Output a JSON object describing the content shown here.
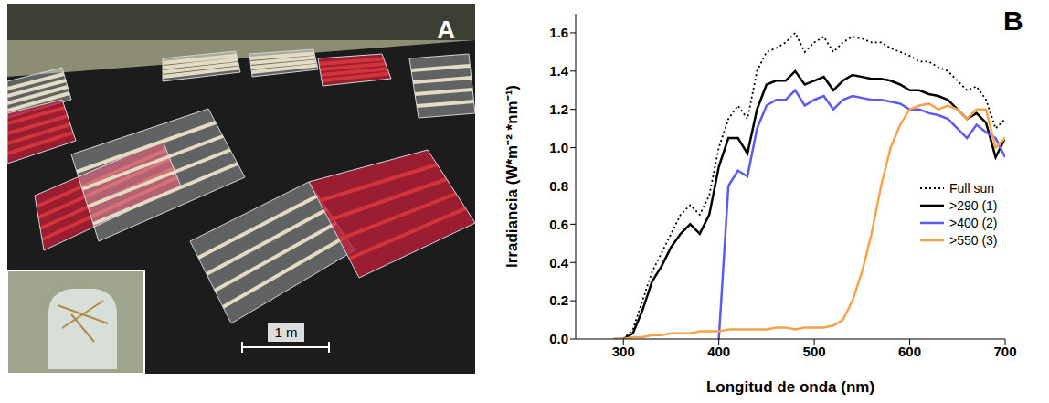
{
  "panel_a": {
    "label": "A",
    "scale_bar": "1 m"
  },
  "chart_data": {
    "type": "line",
    "panel_label": "B",
    "x_label": "Longitud de onda (nm)",
    "y_label": "Irradiancia (W*m⁻² *nm⁻¹)",
    "x": [
      290,
      300,
      310,
      320,
      330,
      340,
      350,
      360,
      370,
      380,
      390,
      400,
      410,
      420,
      430,
      440,
      450,
      460,
      470,
      480,
      490,
      500,
      510,
      520,
      530,
      540,
      550,
      560,
      570,
      580,
      590,
      600,
      610,
      620,
      630,
      640,
      650,
      660,
      670,
      680,
      690,
      700
    ],
    "series": [
      {
        "name": "Full sun",
        "color": "#000000",
        "line_style": "dotted",
        "values": [
          0,
          0,
          0.05,
          0.2,
          0.35,
          0.45,
          0.55,
          0.65,
          0.7,
          0.65,
          0.75,
          1.0,
          1.15,
          1.22,
          1.15,
          1.4,
          1.5,
          1.52,
          1.55,
          1.6,
          1.5,
          1.55,
          1.58,
          1.5,
          1.55,
          1.58,
          1.57,
          1.55,
          1.55,
          1.52,
          1.5,
          1.48,
          1.45,
          1.45,
          1.42,
          1.4,
          1.35,
          1.3,
          1.32,
          1.25,
          1.1,
          1.15
        ]
      },
      {
        "name": ">290 (1)",
        "color": "#000000",
        "line_style": "solid",
        "values": [
          0,
          0,
          0.03,
          0.15,
          0.3,
          0.38,
          0.48,
          0.55,
          0.6,
          0.55,
          0.65,
          0.9,
          1.05,
          1.05,
          0.97,
          1.2,
          1.33,
          1.35,
          1.35,
          1.4,
          1.33,
          1.35,
          1.37,
          1.3,
          1.35,
          1.38,
          1.37,
          1.36,
          1.36,
          1.35,
          1.33,
          1.3,
          1.3,
          1.28,
          1.27,
          1.25,
          1.2,
          1.15,
          1.18,
          1.13,
          0.95,
          1.05
        ]
      },
      {
        "name": ">400 (2)",
        "color": "#5b5bf0",
        "line_style": "solid",
        "values": [
          null,
          null,
          null,
          null,
          null,
          null,
          null,
          null,
          null,
          null,
          null,
          0.0,
          0.8,
          0.88,
          0.85,
          1.1,
          1.22,
          1.25,
          1.25,
          1.3,
          1.22,
          1.25,
          1.27,
          1.2,
          1.25,
          1.27,
          1.26,
          1.25,
          1.25,
          1.24,
          1.23,
          1.2,
          1.2,
          1.18,
          1.17,
          1.15,
          1.1,
          1.05,
          1.12,
          1.08,
          1.05,
          0.95
        ]
      },
      {
        "name": ">550 (3)",
        "color": "#f5a24b",
        "line_style": "solid",
        "values": [
          0,
          0,
          0.01,
          0.01,
          0.02,
          0.02,
          0.03,
          0.03,
          0.03,
          0.04,
          0.04,
          0.04,
          0.05,
          0.05,
          0.05,
          0.05,
          0.05,
          0.06,
          0.06,
          0.05,
          0.06,
          0.06,
          0.06,
          0.07,
          0.1,
          0.2,
          0.35,
          0.55,
          0.8,
          1.0,
          1.12,
          1.2,
          1.22,
          1.23,
          1.2,
          1.22,
          1.2,
          1.15,
          1.2,
          1.2,
          1.0,
          1.05
        ]
      }
    ],
    "xlim": [
      250,
      700
    ],
    "ylim": [
      0,
      1.7
    ],
    "xticks": [
      300,
      400,
      500,
      600,
      700
    ],
    "yticks": [
      {
        "value": 0,
        "label": "0.0"
      },
      0.2,
      0.4,
      0.6,
      0.8,
      {
        "value": 1,
        "label": "1.0"
      },
      1.2,
      1.4,
      1.6
    ],
    "grid": false,
    "legend": "right"
  }
}
